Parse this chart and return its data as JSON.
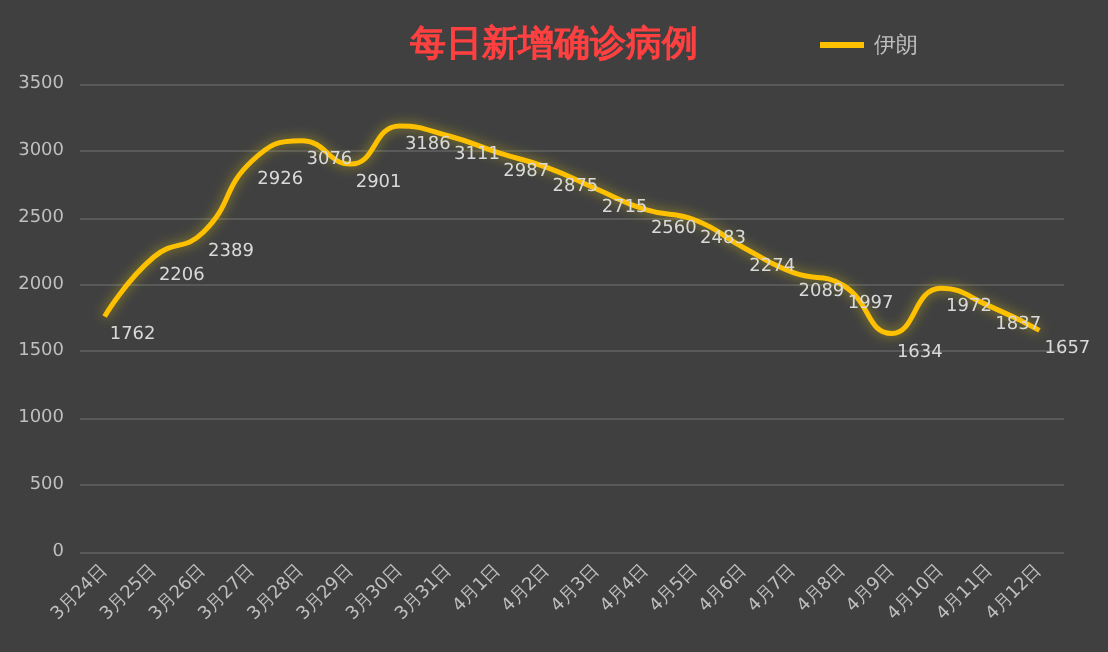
{
  "chart_data": {
    "type": "line",
    "title": "每日新增确诊病例",
    "categories": [
      "3月24日",
      "3月25日",
      "3月26日",
      "3月27日",
      "3月28日",
      "3月29日",
      "3月30日",
      "3月31日",
      "4月1日",
      "4月2日",
      "4月3日",
      "4月4日",
      "4月5日",
      "4月6日",
      "4月7日",
      "4月8日",
      "4月9日",
      "4月10日",
      "4月11日",
      "4月12日"
    ],
    "series": [
      {
        "name": "伊朗",
        "color": "#ffc000",
        "values": [
          1762,
          2206,
          2389,
          2926,
          3076,
          2901,
          3186,
          3111,
          2987,
          2875,
          2715,
          2560,
          2483,
          2274,
          2089,
          1997,
          1634,
          1972,
          1837,
          1657
        ]
      }
    ],
    "ylim": [
      0,
      3500
    ],
    "yticks": [
      0,
      500,
      1000,
      1500,
      2000,
      2500,
      3000,
      3500
    ],
    "grid": "y",
    "legend": "top right",
    "data_labels": true,
    "marker": "none",
    "line_style": "solid"
  }
}
